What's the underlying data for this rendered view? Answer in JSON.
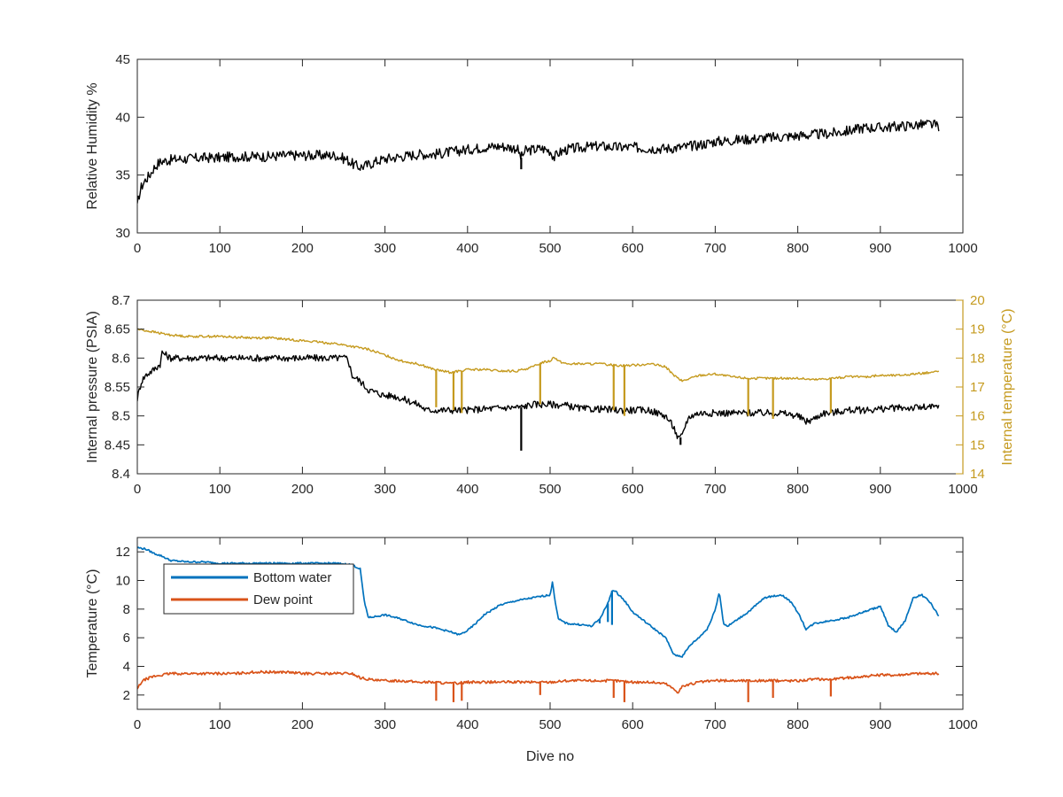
{
  "chart_data": [
    {
      "type": "line",
      "xlabel": "",
      "ylabel": "Relative Humidity %",
      "xlim": [
        0,
        1000
      ],
      "ylim": [
        30,
        45
      ],
      "xticks": [
        "0",
        "100",
        "200",
        "300",
        "400",
        "500",
        "600",
        "700",
        "800",
        "900",
        "1000"
      ],
      "yticks": [
        "30",
        "35",
        "40",
        "45"
      ],
      "grid": false,
      "series": [
        {
          "color": "#000000",
          "x": [
            0,
            2,
            5,
            10,
            15,
            20,
            25,
            30,
            40,
            50,
            60,
            80,
            100,
            120,
            140,
            160,
            180,
            200,
            220,
            240,
            255,
            260,
            265,
            270,
            280,
            290,
            300,
            320,
            340,
            360,
            380,
            400,
            420,
            440,
            460,
            465,
            470,
            480,
            490,
            500,
            505,
            510,
            520,
            540,
            560,
            580,
            600,
            620,
            640,
            660,
            680,
            700,
            720,
            740,
            760,
            780,
            800,
            820,
            840,
            860,
            880,
            900,
            920,
            940,
            960,
            972
          ],
          "y": [
            32.2,
            33.2,
            34.0,
            34.6,
            35.0,
            35.6,
            36.0,
            36.2,
            36.3,
            36.4,
            36.4,
            36.5,
            36.5,
            36.6,
            36.6,
            36.6,
            36.7,
            36.7,
            36.7,
            36.7,
            36.3,
            36.0,
            35.8,
            35.7,
            35.9,
            36.2,
            36.4,
            36.6,
            36.8,
            36.8,
            37.0,
            37.2,
            37.4,
            37.5,
            37.3,
            36.5,
            37.1,
            37.2,
            37.3,
            37.1,
            36.5,
            36.9,
            37.2,
            37.4,
            37.5,
            37.4,
            37.4,
            37.3,
            37.3,
            37.4,
            37.6,
            37.9,
            38.0,
            38.1,
            38.2,
            38.3,
            38.4,
            38.5,
            38.6,
            38.8,
            39.1,
            39.1,
            39.2,
            39.3,
            39.4,
            39.2
          ],
          "spikes": [
            {
              "x": 465,
              "y": 35.5
            }
          ]
        }
      ]
    },
    {
      "type": "line",
      "xlabel": "",
      "ylabel": "Internal pressure (PSIA)",
      "ylabel_right": "Internal temperature (°C)",
      "xlim": [
        0,
        1000
      ],
      "ylim": [
        8.4,
        8.7
      ],
      "ylim_right": [
        14,
        20
      ],
      "xticks": [
        "0",
        "100",
        "200",
        "300",
        "400",
        "500",
        "600",
        "700",
        "800",
        "900",
        "1000"
      ],
      "yticks": [
        "8.4",
        "8.45",
        "8.5",
        "8.55",
        "8.6",
        "8.65",
        "8.7"
      ],
      "yticks_right": [
        "14",
        "15",
        "16",
        "17",
        "18",
        "19",
        "20"
      ],
      "grid": false,
      "series": [
        {
          "axis": "left",
          "color": "#000000",
          "x": [
            0,
            5,
            10,
            20,
            28,
            30,
            40,
            60,
            80,
            100,
            120,
            140,
            160,
            180,
            200,
            220,
            240,
            250,
            255,
            260,
            270,
            280,
            290,
            300,
            310,
            320,
            330,
            340,
            345,
            350,
            360,
            380,
            400,
            420,
            440,
            460,
            465,
            470,
            480,
            500,
            520,
            540,
            560,
            580,
            600,
            620,
            640,
            650,
            655,
            660,
            665,
            670,
            680,
            700,
            720,
            740,
            760,
            780,
            800,
            810,
            820,
            830,
            840,
            860,
            880,
            900,
            920,
            940,
            960,
            972
          ],
          "y": [
            8.53,
            8.56,
            8.57,
            8.58,
            8.59,
            8.61,
            8.6,
            8.6,
            8.6,
            8.6,
            8.6,
            8.6,
            8.6,
            8.6,
            8.6,
            8.6,
            8.6,
            8.6,
            8.6,
            8.57,
            8.56,
            8.545,
            8.54,
            8.535,
            8.535,
            8.53,
            8.525,
            8.52,
            8.515,
            8.51,
            8.51,
            8.51,
            8.51,
            8.512,
            8.514,
            8.515,
            8.515,
            8.517,
            8.52,
            8.52,
            8.518,
            8.512,
            8.512,
            8.51,
            8.51,
            8.51,
            8.5,
            8.48,
            8.46,
            8.465,
            8.49,
            8.5,
            8.505,
            8.505,
            8.505,
            8.505,
            8.505,
            8.505,
            8.5,
            8.49,
            8.495,
            8.505,
            8.505,
            8.51,
            8.51,
            8.512,
            8.514,
            8.514,
            8.515,
            8.515
          ],
          "spikes": [
            {
              "x": 465,
              "y": 8.44
            },
            {
              "x": 658,
              "y": 8.45
            }
          ]
        },
        {
          "axis": "right",
          "color": "#C59A1E",
          "x": [
            0,
            10,
            20,
            40,
            60,
            80,
            100,
            120,
            140,
            160,
            180,
            200,
            220,
            240,
            260,
            280,
            300,
            320,
            340,
            360,
            380,
            400,
            420,
            440,
            460,
            480,
            490,
            500,
            505,
            510,
            520,
            540,
            560,
            580,
            600,
            620,
            640,
            650,
            660,
            670,
            680,
            700,
            720,
            740,
            760,
            780,
            800,
            820,
            840,
            860,
            880,
            900,
            920,
            940,
            960,
            972
          ],
          "y": [
            19.0,
            18.95,
            18.9,
            18.8,
            18.75,
            18.75,
            18.75,
            18.72,
            18.7,
            18.7,
            18.65,
            18.6,
            18.55,
            18.5,
            18.4,
            18.3,
            18.1,
            17.9,
            17.8,
            17.6,
            17.5,
            17.6,
            17.6,
            17.55,
            17.55,
            17.7,
            17.85,
            17.9,
            18.05,
            17.9,
            17.8,
            17.8,
            17.8,
            17.75,
            17.75,
            17.8,
            17.7,
            17.4,
            17.2,
            17.3,
            17.4,
            17.45,
            17.35,
            17.3,
            17.3,
            17.3,
            17.3,
            17.25,
            17.3,
            17.35,
            17.35,
            17.4,
            17.4,
            17.45,
            17.5,
            17.55
          ],
          "spikes": [
            {
              "x": 362,
              "y": 16.3
            },
            {
              "x": 383,
              "y": 16.2
            },
            {
              "x": 393,
              "y": 16.1
            },
            {
              "x": 488,
              "y": 16.4
            },
            {
              "x": 577,
              "y": 16.2
            },
            {
              "x": 590,
              "y": 16.0
            },
            {
              "x": 740,
              "y": 16.0
            },
            {
              "x": 770,
              "y": 15.9
            },
            {
              "x": 840,
              "y": 16.1
            }
          ]
        }
      ]
    },
    {
      "type": "line",
      "xlabel": "Dive no",
      "ylabel": "Temperature (°C)",
      "xlim": [
        0,
        1000
      ],
      "ylim": [
        1,
        13
      ],
      "xticks": [
        "0",
        "100",
        "200",
        "300",
        "400",
        "500",
        "600",
        "700",
        "800",
        "900",
        "1000"
      ],
      "yticks": [
        "2",
        "4",
        "6",
        "8",
        "10",
        "12"
      ],
      "grid": false,
      "legend": {
        "placement": "top-left"
      },
      "series": [
        {
          "name": "Bottom water",
          "color": "#0072BD",
          "x": [
            0,
            10,
            20,
            30,
            40,
            60,
            80,
            100,
            120,
            140,
            160,
            180,
            200,
            220,
            240,
            260,
            270,
            275,
            280,
            290,
            300,
            320,
            340,
            360,
            380,
            390,
            400,
            410,
            420,
            440,
            460,
            480,
            500,
            503,
            506,
            510,
            520,
            540,
            550,
            560,
            570,
            575,
            580,
            590,
            600,
            620,
            640,
            650,
            660,
            670,
            680,
            690,
            695,
            700,
            705,
            710,
            715,
            720,
            740,
            760,
            780,
            790,
            800,
            810,
            820,
            840,
            860,
            880,
            900,
            910,
            920,
            930,
            940,
            950,
            960,
            972
          ],
          "y": [
            12.3,
            12.2,
            11.9,
            11.7,
            11.4,
            11.3,
            11.3,
            11.2,
            11.2,
            11.2,
            11.2,
            11.2,
            11.2,
            11.2,
            11.2,
            11.1,
            10.8,
            8.5,
            7.4,
            7.5,
            7.6,
            7.3,
            6.9,
            6.7,
            6.4,
            6.2,
            6.5,
            7.0,
            7.6,
            8.3,
            8.6,
            8.8,
            9.0,
            9.9,
            8.6,
            7.3,
            7.0,
            6.9,
            6.8,
            7.3,
            8.4,
            9.3,
            9.2,
            8.6,
            7.8,
            6.9,
            6.0,
            4.8,
            4.7,
            5.5,
            6.0,
            6.6,
            7.2,
            8.0,
            9.2,
            7.0,
            6.8,
            7.0,
            7.8,
            8.8,
            9.0,
            8.6,
            7.8,
            6.6,
            7.0,
            7.2,
            7.4,
            7.8,
            8.2,
            6.8,
            6.4,
            7.2,
            8.8,
            9.0,
            8.5,
            7.4
          ],
          "spikes": [
            {
              "x": 560,
              "y": 7.0
            },
            {
              "x": 570,
              "y": 7.1
            },
            {
              "x": 575,
              "y": 6.9
            }
          ]
        },
        {
          "name": "Dew point",
          "color": "#D95319",
          "x": [
            0,
            5,
            10,
            20,
            30,
            40,
            60,
            80,
            100,
            120,
            140,
            160,
            180,
            200,
            220,
            240,
            260,
            270,
            280,
            290,
            300,
            320,
            340,
            360,
            380,
            400,
            420,
            440,
            460,
            480,
            500,
            520,
            540,
            560,
            580,
            600,
            620,
            640,
            650,
            655,
            660,
            680,
            700,
            720,
            740,
            760,
            780,
            800,
            820,
            840,
            860,
            880,
            900,
            920,
            940,
            960,
            972
          ],
          "y": [
            2.4,
            2.9,
            3.1,
            3.3,
            3.4,
            3.5,
            3.5,
            3.5,
            3.5,
            3.5,
            3.6,
            3.6,
            3.6,
            3.5,
            3.5,
            3.5,
            3.5,
            3.2,
            3.1,
            3.0,
            3.0,
            3.0,
            2.9,
            2.9,
            2.8,
            2.9,
            2.9,
            2.9,
            2.9,
            2.9,
            2.9,
            3.0,
            3.0,
            3.0,
            3.0,
            2.9,
            2.9,
            2.8,
            2.4,
            2.2,
            2.6,
            2.9,
            3.0,
            3.0,
            3.0,
            3.0,
            3.0,
            3.0,
            3.1,
            3.1,
            3.2,
            3.3,
            3.4,
            3.4,
            3.5,
            3.5,
            3.5
          ],
          "spikes": [
            {
              "x": 362,
              "y": 1.6
            },
            {
              "x": 383,
              "y": 1.5
            },
            {
              "x": 393,
              "y": 1.6
            },
            {
              "x": 488,
              "y": 2.0
            },
            {
              "x": 577,
              "y": 1.8
            },
            {
              "x": 590,
              "y": 1.5
            },
            {
              "x": 740,
              "y": 1.5
            },
            {
              "x": 770,
              "y": 1.8
            },
            {
              "x": 840,
              "y": 1.9
            }
          ]
        }
      ]
    }
  ]
}
